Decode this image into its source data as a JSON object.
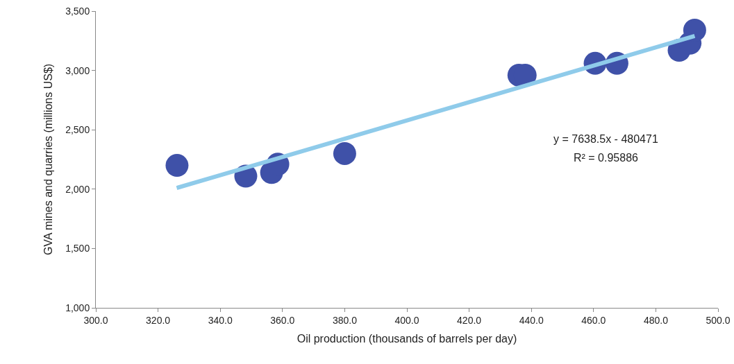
{
  "chart_data": {
    "type": "scatter",
    "xlabel": "Oil production (thousands of barrels per day)",
    "ylabel": "GVA mines and quarries (millions US$)",
    "x": [
      326.1,
      348.2,
      356.5,
      358.5,
      380.0,
      436.0,
      438.0,
      460.5,
      467.5,
      487.5,
      491.0,
      492.5
    ],
    "series": [
      {
        "color": "#3f51a8",
        "values": [
          2200,
          2110,
          2140,
          2210,
          2300,
          2960,
          2960,
          3060,
          3060,
          3170,
          3230,
          3340
        ]
      },
      {
        "type": "line",
        "color": "#8fcbea",
        "x": [
          326,
          492.5
        ],
        "values": [
          2010,
          3290
        ],
        "marker": "none"
      }
    ],
    "marker": "circle",
    "grid": false,
    "legend": false,
    "xlim": [
      300,
      500
    ],
    "xticks": [
      {
        "value": 300,
        "label": "300.0"
      },
      {
        "value": 320,
        "label": "320.0"
      },
      {
        "value": 340,
        "label": "340.0"
      },
      {
        "value": 360,
        "label": "360.0"
      },
      {
        "value": 380,
        "label": "380.0"
      },
      {
        "value": 400,
        "label": "400.0"
      },
      {
        "value": 420,
        "label": "420.0"
      },
      {
        "value": 440,
        "label": "440.0"
      },
      {
        "value": 460,
        "label": "460.0"
      },
      {
        "value": 480,
        "label": "480.0"
      },
      {
        "value": 500,
        "label": "500.0"
      }
    ],
    "ylim": [
      1000,
      3500
    ],
    "yticks": [
      {
        "value": 1000,
        "label": "1,000"
      },
      {
        "value": 1500,
        "label": "1,500"
      },
      {
        "value": 2000,
        "label": "2,000"
      },
      {
        "value": 2500,
        "label": "2,500"
      },
      {
        "value": 3000,
        "label": "3,000"
      },
      {
        "value": 3500,
        "label": "3,500"
      }
    ],
    "annotations": [
      "y = 7638.5x - 480471",
      "R² = 0.95886"
    ]
  }
}
